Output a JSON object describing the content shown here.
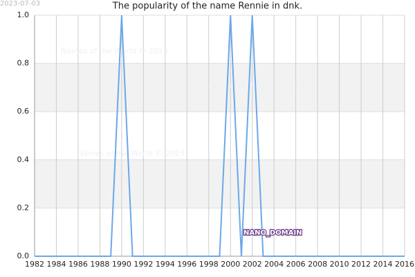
{
  "chart_data": {
    "type": "line",
    "title": "The popularity of the name Rennie in dnk.",
    "date_stamp": "2023-07-03",
    "watermarks": [
      "Names of the World © 2023",
      "Names of the World © 2023",
      "Names of the World © 2023"
    ],
    "domain_label": "NANO_DOMAIN",
    "x": [
      1982,
      1983,
      1984,
      1985,
      1986,
      1987,
      1988,
      1989,
      1990,
      1991,
      1992,
      1993,
      1994,
      1995,
      1996,
      1997,
      1998,
      1999,
      2000,
      2001,
      2002,
      2003,
      2004,
      2005,
      2006,
      2007,
      2008,
      2009,
      2010,
      2011,
      2012,
      2013,
      2014,
      2015,
      2016
    ],
    "series": [
      {
        "color": "#6aa8e8",
        "values": [
          0,
          0,
          0,
          0,
          0,
          0,
          0,
          0,
          1,
          0,
          0,
          0,
          0,
          0,
          0,
          0,
          0,
          0,
          1,
          0,
          1,
          0,
          0,
          0,
          0,
          0,
          0,
          0,
          0,
          0,
          0,
          0,
          0,
          0,
          0
        ]
      }
    ],
    "xlim": [
      1982,
      2016
    ],
    "xticks": [
      1982,
      1984,
      1986,
      1988,
      1990,
      1992,
      1994,
      1996,
      1998,
      2000,
      2002,
      2004,
      2006,
      2008,
      2010,
      2012,
      2014,
      2016
    ],
    "ylim": [
      0,
      1
    ],
    "yticks": [
      {
        "value": 0,
        "label": "0.0"
      },
      0.2,
      0.4,
      0.6,
      0.8,
      {
        "value": 1,
        "label": "1.0"
      }
    ],
    "grid": true
  }
}
